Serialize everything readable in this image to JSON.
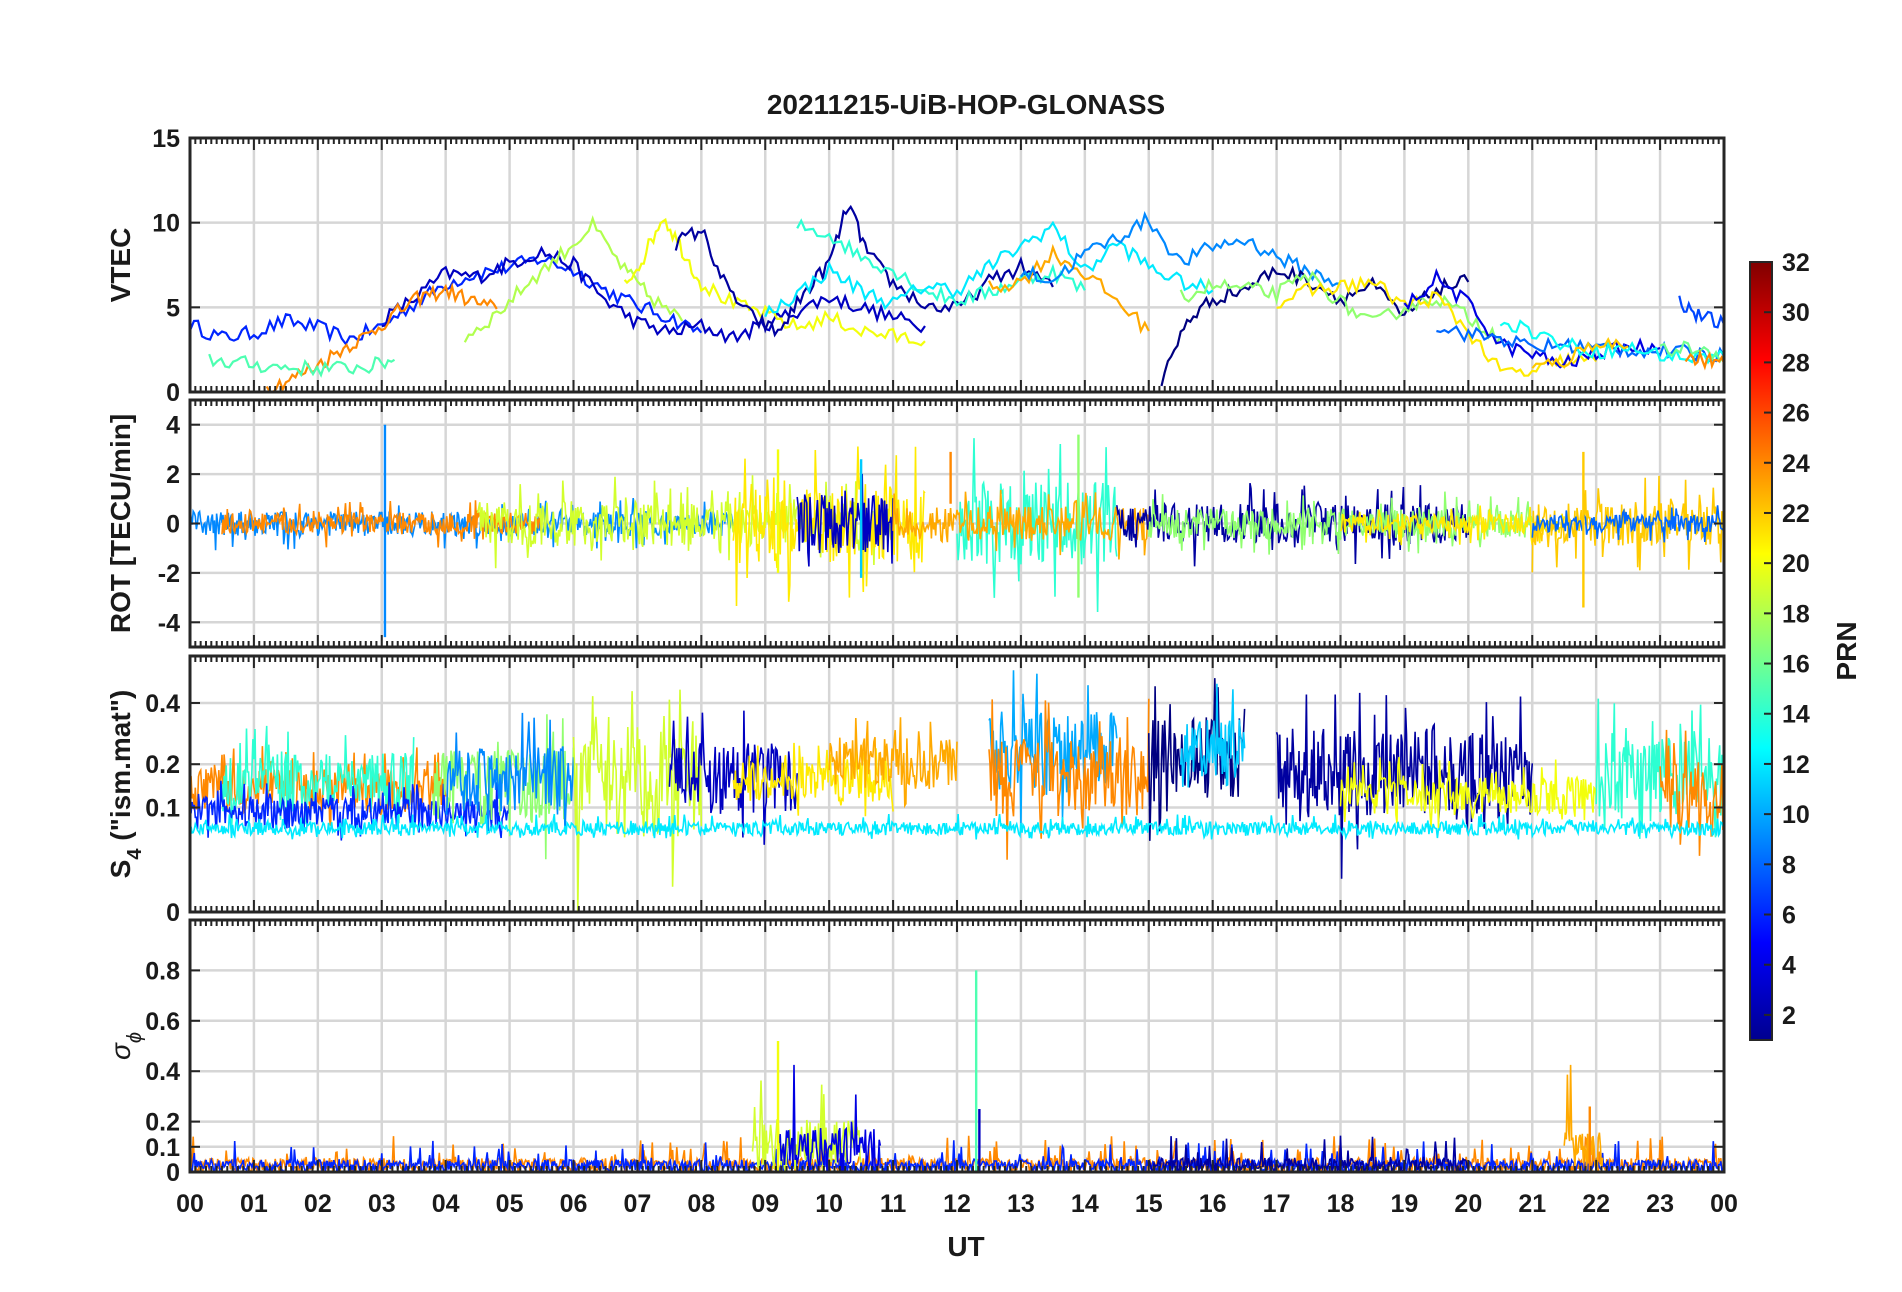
{
  "chart_data": {
    "type": "line",
    "title": "20211215-UiB-HOP-GLONASS",
    "xlabel": "UT",
    "x_tick_labels": [
      "00",
      "01",
      "02",
      "03",
      "04",
      "05",
      "06",
      "07",
      "08",
      "09",
      "10",
      "11",
      "12",
      "13",
      "14",
      "15",
      "16",
      "17",
      "18",
      "19",
      "20",
      "21",
      "22",
      "23",
      "00"
    ],
    "xlim": [
      0,
      24
    ],
    "grid": true,
    "colorbar": {
      "label": "PRN",
      "range": [
        1,
        32
      ],
      "colormap": "jet",
      "tick_labels": [
        "2",
        "4",
        "6",
        "8",
        "10",
        "12",
        "14",
        "16",
        "18",
        "20",
        "22",
        "24",
        "26",
        "28",
        "30",
        "32"
      ],
      "tick_values": [
        2,
        4,
        6,
        8,
        10,
        12,
        14,
        16,
        18,
        20,
        22,
        24,
        26,
        28,
        30,
        32
      ]
    },
    "panels": [
      {
        "id": "vtec",
        "ylabel": "VTEC",
        "ylim": [
          0,
          15
        ],
        "y_tick_values": [
          0,
          5,
          10,
          15
        ],
        "y_tick_labels": [
          "0",
          "5",
          "10",
          "15"
        ],
        "series": [
          {
            "prn": 6,
            "x": [
              0.0,
              0.5,
              1.0,
              1.5,
              2.0,
              2.5,
              3.0,
              3.5,
              4.0,
              4.5,
              5.0,
              5.5,
              6.0,
              6.5,
              7.0,
              7.5,
              8.0
            ],
            "y": [
              4.0,
              3.2,
              3.5,
              4.2,
              3.8,
              3.1,
              3.9,
              5.2,
              6.4,
              7.0,
              7.4,
              7.9,
              7.2,
              6.0,
              5.1,
              4.4,
              3.5
            ]
          },
          {
            "prn": 3,
            "x": [
              3.0,
              3.5,
              4.0,
              4.5,
              5.0,
              5.5,
              6.0,
              6.5,
              7.0,
              7.5,
              8.0,
              8.5,
              9.0,
              9.5,
              10.0,
              10.5,
              11.0,
              11.5
            ],
            "y": [
              4.2,
              5.5,
              7.0,
              6.8,
              7.6,
              8.3,
              7.5,
              5.4,
              4.1,
              3.5,
              3.9,
              3.2,
              4.0,
              4.8,
              5.6,
              5.0,
              4.4,
              3.9
            ]
          },
          {
            "prn": 24,
            "x": [
              1.2,
              1.6,
              2.0,
              2.4,
              2.8,
              3.2,
              3.6,
              4.0,
              4.4,
              4.8
            ],
            "y": [
              0.2,
              0.8,
              1.6,
              2.6,
              3.4,
              4.6,
              5.6,
              6.0,
              5.4,
              4.9
            ]
          },
          {
            "prn": 15,
            "x": [
              0.3,
              0.8,
              1.3,
              1.8,
              2.3,
              2.8,
              3.2
            ],
            "y": [
              1.9,
              1.7,
              1.5,
              1.4,
              1.4,
              1.5,
              1.9
            ]
          },
          {
            "prn": 18,
            "x": [
              4.3,
              4.8,
              5.3,
              5.8,
              6.3,
              6.8,
              7.2,
              7.7
            ],
            "y": [
              3.2,
              4.6,
              6.5,
              8.1,
              9.8,
              7.2,
              5.6,
              4.2
            ]
          },
          {
            "prn": 20,
            "x": [
              6.8,
              7.1,
              7.4,
              7.7,
              8.0,
              8.5,
              9.0,
              9.5,
              10.0,
              10.5,
              11.0,
              11.5
            ],
            "y": [
              6.3,
              8.0,
              10.4,
              8.4,
              6.4,
              5.2,
              4.6,
              3.8,
              4.4,
              3.6,
              3.3,
              3.0
            ]
          },
          {
            "prn": 2,
            "x": [
              7.6,
              8.0,
              8.4,
              8.8,
              9.2,
              9.6,
              10.0,
              10.3,
              10.6,
              11.0,
              11.5,
              12.0,
              12.5,
              13.0,
              13.5
            ],
            "y": [
              8.8,
              9.6,
              6.1,
              4.4,
              3.5,
              5.8,
              7.6,
              11.1,
              8.2,
              6.4,
              5.1,
              4.9,
              6.5,
              7.4,
              6.2
            ]
          },
          {
            "prn": 14,
            "x": [
              9.5,
              10.0,
              10.5,
              11.0,
              11.5,
              12.0,
              12.5,
              13.0,
              13.5,
              14.0
            ],
            "y": [
              9.8,
              9.3,
              8.0,
              7.2,
              6.0,
              5.4,
              5.9,
              6.6,
              7.1,
              6.0
            ]
          },
          {
            "prn": 12,
            "x": [
              9.0,
              9.5,
              10.0,
              10.5,
              11.0,
              11.5,
              12.0,
              12.5,
              13.0,
              13.5,
              14.0,
              14.5,
              15.0,
              15.5,
              16.0
            ],
            "y": [
              4.6,
              5.8,
              7.2,
              6.0,
              5.2,
              6.3,
              6.0,
              7.4,
              8.6,
              9.8,
              7.1,
              8.8,
              7.4,
              6.5,
              6.0
            ]
          },
          {
            "prn": 23,
            "x": [
              12.5,
              13.0,
              13.5,
              14.0,
              14.5,
              15.0
            ],
            "y": [
              6.2,
              6.5,
              8.2,
              7.0,
              5.4,
              3.6
            ]
          },
          {
            "prn": 9,
            "x": [
              13.0,
              13.5,
              14.0,
              14.5,
              15.0,
              15.5,
              16.0,
              16.5,
              17.0,
              17.5,
              18.0
            ],
            "y": [
              7.1,
              6.6,
              8.2,
              9.1,
              10.2,
              7.6,
              8.6,
              9.0,
              8.0,
              7.1,
              6.4
            ]
          },
          {
            "prn": 1,
            "x": [
              15.2,
              15.6,
              16.0,
              16.5,
              17.0,
              17.5,
              18.0,
              18.5,
              19.0,
              19.5,
              20.0
            ],
            "y": [
              0.6,
              4.2,
              5.5,
              6.1,
              7.2,
              6.6,
              5.5,
              6.3,
              4.4,
              6.1,
              6.5
            ]
          },
          {
            "prn": 17,
            "x": [
              15.5,
              16.0,
              16.5,
              17.0,
              17.5,
              18.0,
              18.5,
              19.0,
              19.5,
              20.0,
              20.5
            ],
            "y": [
              5.6,
              6.3,
              6.1,
              5.8,
              6.9,
              5.3,
              4.0,
              5.0,
              5.6,
              4.4,
              3.2
            ]
          },
          {
            "prn": 21,
            "x": [
              17.0,
              17.5,
              18.0,
              18.5,
              19.0,
              19.5,
              20.0,
              20.5,
              21.0,
              21.5,
              22.0
            ],
            "y": [
              5.2,
              6.0,
              6.2,
              6.5,
              5.1,
              5.6,
              3.6,
              1.2,
              1.1,
              1.9,
              1.8
            ]
          },
          {
            "prn": 4,
            "x": [
              19.0,
              19.5,
              20.0,
              20.5,
              21.0,
              21.5,
              22.0,
              22.5,
              23.0
            ],
            "y": [
              5.0,
              6.7,
              5.2,
              2.8,
              2.2,
              1.6,
              2.3,
              2.7,
              2.6
            ]
          },
          {
            "prn": 8,
            "x": [
              19.5,
              20.0,
              20.5,
              21.0,
              21.5,
              22.0,
              22.5,
              23.0,
              23.5,
              24.0
            ],
            "y": [
              4.0,
              3.4,
              3.2,
              2.6,
              2.8,
              2.6,
              2.5,
              2.4,
              2.3,
              2.1
            ]
          },
          {
            "prn": 13,
            "x": [
              20.5,
              21.0,
              21.5,
              22.0,
              22.5,
              23.0,
              23.5,
              24.0
            ],
            "y": [
              4.3,
              3.6,
              2.8,
              2.4,
              2.6,
              2.2,
              2.0,
              2.2
            ]
          },
          {
            "prn": 22,
            "x": [
              21.0,
              21.5,
              22.0,
              22.5
            ],
            "y": [
              1.4,
              1.8,
              3.0,
              2.7
            ]
          },
          {
            "prn": 7,
            "x": [
              23.3,
              23.6,
              24.0
            ],
            "y": [
              5.4,
              4.5,
              4.0
            ]
          },
          {
            "prn": 16,
            "x": [
              23.0,
              23.5,
              24.0
            ],
            "y": [
              2.4,
              2.6,
              2.2
            ]
          },
          {
            "prn": 24,
            "x": [
              23.4,
              23.7,
              24.0
            ],
            "y": [
              2.0,
              1.9,
              1.7
            ]
          }
        ]
      },
      {
        "id": "rot",
        "ylabel": "ROT [TECU/min]",
        "ylim": [
          -5,
          5
        ],
        "y_tick_values": [
          -4,
          -2,
          0,
          2,
          4
        ],
        "y_tick_labels": [
          "-4",
          "-2",
          "0",
          "2",
          "4"
        ],
        "noise": [
          {
            "prn": 9,
            "x_start": 0.0,
            "x_end": 8.5,
            "amplitude": 0.5
          },
          {
            "prn": 24,
            "x_start": 0.5,
            "x_end": 5.5,
            "amplitude": 0.45
          },
          {
            "prn": 19,
            "x_start": 4.5,
            "x_end": 11.0,
            "amplitude": 0.9
          },
          {
            "prn": 21,
            "x_start": 8.5,
            "x_end": 11.5,
            "amplitude": 1.6
          },
          {
            "prn": 3,
            "x_start": 9.5,
            "x_end": 11.0,
            "amplitude": 1.2
          },
          {
            "prn": 14,
            "x_start": 12.0,
            "x_end": 14.5,
            "amplitude": 1.7
          },
          {
            "prn": 23,
            "x_start": 11.0,
            "x_end": 15.0,
            "amplitude": 0.7
          },
          {
            "prn": 2,
            "x_start": 14.5,
            "x_end": 20.0,
            "amplitude": 0.8
          },
          {
            "prn": 17,
            "x_start": 15.0,
            "x_end": 21.0,
            "amplitude": 0.6
          },
          {
            "prn": 21,
            "x_start": 18.0,
            "x_end": 21.5,
            "amplitude": 0.4
          },
          {
            "prn": 22,
            "x_start": 21.0,
            "x_end": 24.0,
            "amplitude": 0.9
          },
          {
            "prn": 8,
            "x_start": 21.0,
            "x_end": 24.0,
            "amplitude": 0.35
          }
        ],
        "spikes": [
          {
            "prn": 9,
            "x": 3.05,
            "y_min": -4.6,
            "y_max": 4.0
          },
          {
            "prn": 24,
            "x": 11.9,
            "y_min": 0.8,
            "y_max": 2.9
          },
          {
            "prn": 17,
            "x": 13.9,
            "y_min": -3.0,
            "y_max": 3.6
          },
          {
            "prn": 22,
            "x": 21.8,
            "y_min": -3.4,
            "y_max": 2.9
          },
          {
            "prn": 20,
            "x": 9.2,
            "y_min": -2.0,
            "y_max": 3.0
          },
          {
            "prn": 11,
            "x": 10.5,
            "y_min": -2.2,
            "y_max": 2.6
          }
        ]
      },
      {
        "id": "s4",
        "ylabel": "S",
        "ylabel_subscript": "4",
        "ylabel_suffix": " (\"ism.mat\")",
        "ylim": [
          0,
          0.6
        ],
        "y_scale": "sqrt",
        "y_tick_values": [
          0,
          0.1,
          0.2,
          0.4
        ],
        "y_tick_labels": [
          "0",
          "0.1",
          "0.2",
          "0.4"
        ],
        "noise": [
          {
            "prn": 24,
            "x_start": 0.0,
            "x_end": 4.0,
            "base": 0.12,
            "amplitude": 0.12
          },
          {
            "prn": 14,
            "x_start": 0.5,
            "x_end": 3.5,
            "base": 0.14,
            "amplitude": 0.16
          },
          {
            "prn": 6,
            "x_start": 0.0,
            "x_end": 5.0,
            "base": 0.08,
            "amplitude": 0.07
          },
          {
            "prn": 17,
            "x_start": 3.8,
            "x_end": 6.0,
            "base": 0.12,
            "amplitude": 0.22
          },
          {
            "prn": 9,
            "x_start": 4.0,
            "x_end": 6.0,
            "base": 0.14,
            "amplitude": 0.2
          },
          {
            "prn": 19,
            "x_start": 6.0,
            "x_end": 8.0,
            "base": 0.12,
            "amplitude": 0.3
          },
          {
            "prn": 3,
            "x_start": 7.5,
            "x_end": 9.5,
            "base": 0.14,
            "amplitude": 0.22
          },
          {
            "prn": 21,
            "x_start": 8.5,
            "x_end": 11.0,
            "base": 0.14,
            "amplitude": 0.12
          },
          {
            "prn": 23,
            "x_start": 10.0,
            "x_end": 12.0,
            "base": 0.18,
            "amplitude": 0.18
          },
          {
            "prn": 10,
            "x_start": 12.5,
            "x_end": 14.5,
            "base": 0.2,
            "amplitude": 0.3
          },
          {
            "prn": 24,
            "x_start": 12.5,
            "x_end": 15.0,
            "base": 0.14,
            "amplitude": 0.25
          },
          {
            "prn": 1,
            "x_start": 15.0,
            "x_end": 16.5,
            "base": 0.18,
            "amplitude": 0.3
          },
          {
            "prn": 11,
            "x_start": 15.5,
            "x_end": 16.5,
            "base": 0.2,
            "amplitude": 0.25
          },
          {
            "prn": 2,
            "x_start": 17.0,
            "x_end": 21.0,
            "base": 0.14,
            "amplitude": 0.3
          },
          {
            "prn": 20,
            "x_start": 18.0,
            "x_end": 22.0,
            "base": 0.11,
            "amplitude": 0.1
          },
          {
            "prn": 14,
            "x_start": 22.0,
            "x_end": 24.0,
            "base": 0.14,
            "amplitude": 0.25
          },
          {
            "prn": 24,
            "x_start": 23.0,
            "x_end": 24.0,
            "base": 0.1,
            "amplitude": 0.2
          },
          {
            "prn": 12,
            "x_start": 0.0,
            "x_end": 24.0,
            "base": 0.06,
            "amplitude": 0.025
          }
        ]
      },
      {
        "id": "sigma_phi",
        "ylabel": "σ",
        "ylabel_subscript": "ϕ",
        "ylim": [
          0,
          1
        ],
        "y_tick_values": [
          0,
          0.1,
          0.2,
          0.4,
          0.6,
          0.8
        ],
        "y_tick_labels": [
          "0",
          "0.1",
          "0.2",
          "0.4",
          "0.6",
          "0.8"
        ],
        "noise": [
          {
            "prn": 24,
            "x_start": 0.0,
            "x_end": 24.0,
            "amplitude": 0.08
          },
          {
            "prn": 6,
            "x_start": 0.0,
            "x_end": 24.0,
            "amplitude": 0.07
          },
          {
            "prn": 2,
            "x_start": 15.0,
            "x_end": 20.0,
            "amplitude": 0.08
          },
          {
            "prn": 19,
            "x_start": 8.8,
            "x_end": 10.5,
            "amplitude": 0.3
          },
          {
            "prn": 4,
            "x_start": 9.2,
            "x_end": 10.8,
            "amplitude": 0.25
          },
          {
            "prn": 23,
            "x_start": 21.5,
            "x_end": 22.1,
            "amplitude": 0.25
          }
        ],
        "spikes": [
          {
            "prn": 20,
            "x": 9.2,
            "y_min": 0,
            "y_max": 0.52
          },
          {
            "prn": 15,
            "x": 12.3,
            "y_min": 0,
            "y_max": 0.8
          },
          {
            "prn": 3,
            "x": 12.35,
            "y_min": 0,
            "y_max": 0.25
          },
          {
            "prn": 24,
            "x": 21.9,
            "y_min": 0,
            "y_max": 0.26
          }
        ]
      }
    ]
  }
}
